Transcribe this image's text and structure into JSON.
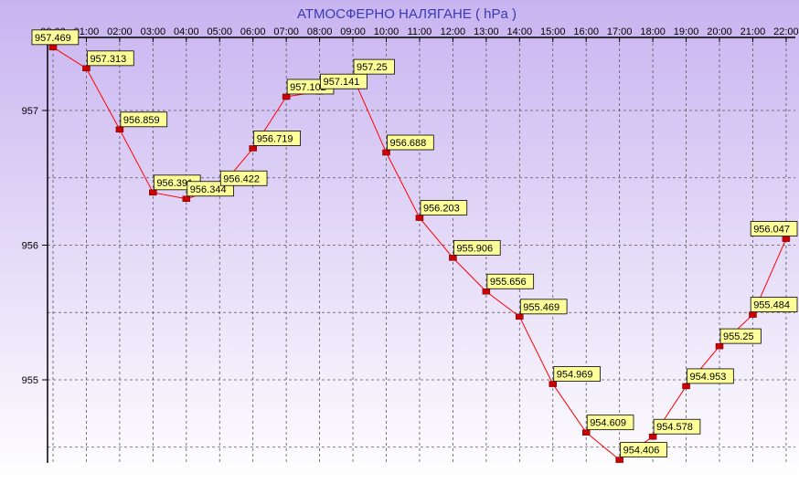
{
  "chart_data": {
    "type": "line",
    "title": "АТМОСФЕРНО НАЛЯГАНЕ  ( hPa )",
    "xlabel": "",
    "ylabel": "",
    "categories": [
      "00:00",
      "01:00",
      "02:00",
      "03:00",
      "04:00",
      "05:00",
      "06:00",
      "07:00",
      "08:00",
      "09:00",
      "10:00",
      "11:00",
      "12:00",
      "13:00",
      "14:00",
      "15:00",
      "16:00",
      "17:00",
      "18:00",
      "19:00",
      "20:00",
      "21:00",
      "22:00"
    ],
    "series": [
      {
        "values": [
          957.469,
          957.313,
          956.859,
          956.391,
          956.344,
          956.422,
          956.719,
          957.102,
          957.141,
          957.25,
          956.688,
          956.203,
          955.906,
          955.656,
          955.469,
          954.969,
          954.609,
          954.406,
          954.578,
          954.953,
          955.25,
          955.484,
          956.047
        ],
        "labels": [
          "957.469",
          "957.313",
          "956.859",
          "956.391",
          "956.344",
          "956.422",
          "956.719",
          "957.102",
          "957.141",
          "957.25",
          "956.688",
          "956.203",
          "955.906",
          "955.656",
          "955.469",
          "954.969",
          "954.609",
          "954.406",
          "954.578",
          "954.953",
          "955.25",
          "955.484",
          "956.047"
        ]
      }
    ],
    "y_ticks": [
      "957",
      "956",
      "955"
    ],
    "ylim": [
      954.33,
      957.5
    ],
    "grid": true,
    "colors": {
      "line": "#ff0000",
      "marker": "#cc0000",
      "label_bg": "#ffff99",
      "title": "#3a3ab4",
      "background_top": "#c8b4f0",
      "background_bottom": "#ffffff"
    }
  }
}
